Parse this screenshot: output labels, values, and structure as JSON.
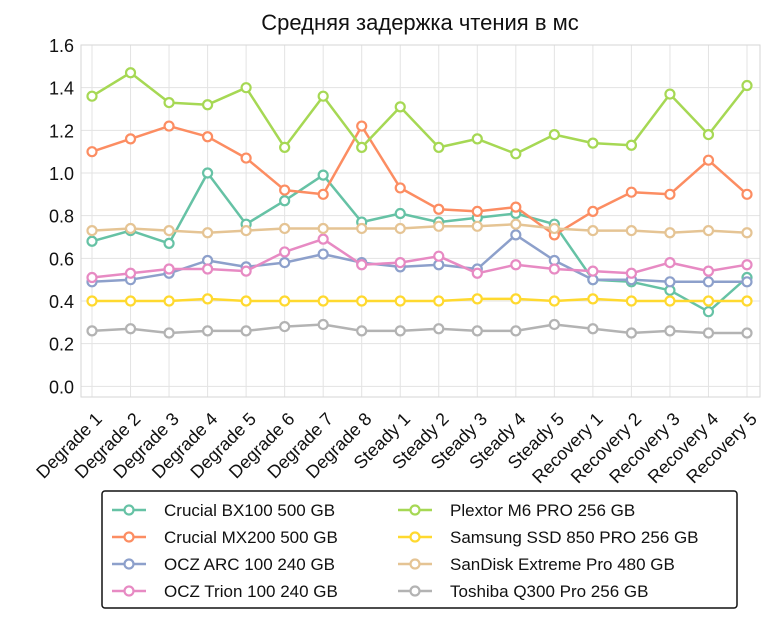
{
  "chart_data": {
    "type": "line",
    "title": "Средняя задержка чтения в мс",
    "xlabel": "",
    "ylabel": "",
    "ylim": [
      -0.05,
      1.6
    ],
    "yticks": [
      "0.0",
      "0.2",
      "0.4",
      "0.6",
      "0.8",
      "1.0",
      "1.2",
      "1.4",
      "1.6"
    ],
    "grid": true,
    "legend_position": "bottom-center",
    "categories": [
      "Degrade 1",
      "Degrade 2",
      "Degrade 3",
      "Degrade 4",
      "Degrade 5",
      "Degrade 6",
      "Degrade 7",
      "Degrade 8",
      "Steady 1",
      "Steady 2",
      "Steady 3",
      "Steady 4",
      "Steady 5",
      "Recovery 1",
      "Recovery 2",
      "Recovery 3",
      "Recovery 4",
      "Recovery 5"
    ],
    "series": [
      {
        "name": "Crucial BX100 500 GB",
        "color": "#66c2a5",
        "values": [
          0.68,
          0.73,
          0.67,
          1.0,
          0.76,
          0.87,
          0.99,
          0.77,
          0.81,
          0.77,
          0.79,
          0.81,
          0.76,
          0.5,
          0.49,
          0.45,
          0.35,
          0.51
        ]
      },
      {
        "name": "Crucial MX200 500 GB",
        "color": "#fc8d62",
        "values": [
          1.1,
          1.16,
          1.22,
          1.17,
          1.07,
          0.92,
          0.9,
          1.22,
          0.93,
          0.83,
          0.82,
          0.84,
          0.71,
          0.82,
          0.91,
          0.9,
          1.06,
          0.9
        ]
      },
      {
        "name": "OCZ ARC 100 240 GB",
        "color": "#8da0cb",
        "values": [
          0.49,
          0.5,
          0.53,
          0.59,
          0.56,
          0.58,
          0.62,
          0.58,
          0.56,
          0.57,
          0.55,
          0.71,
          0.59,
          0.5,
          0.5,
          0.49,
          0.49,
          0.49
        ]
      },
      {
        "name": "OCZ Trion 100 240 GB",
        "color": "#e78ac3",
        "values": [
          0.51,
          0.53,
          0.55,
          0.55,
          0.54,
          0.63,
          0.69,
          0.57,
          0.58,
          0.61,
          0.53,
          0.57,
          0.55,
          0.54,
          0.53,
          0.58,
          0.54,
          0.57
        ]
      },
      {
        "name": "Plextor M6 PRO 256 GB",
        "color": "#a6d854",
        "values": [
          1.36,
          1.47,
          1.33,
          1.32,
          1.4,
          1.12,
          1.36,
          1.12,
          1.31,
          1.12,
          1.16,
          1.09,
          1.18,
          1.14,
          1.13,
          1.37,
          1.18,
          1.41
        ]
      },
      {
        "name": "Samsung SSD 850 PRO 256 GB",
        "color": "#ffd92f",
        "values": [
          0.4,
          0.4,
          0.4,
          0.41,
          0.4,
          0.4,
          0.4,
          0.4,
          0.4,
          0.4,
          0.41,
          0.41,
          0.4,
          0.41,
          0.4,
          0.4,
          0.4,
          0.4
        ]
      },
      {
        "name": "SanDisk Extreme Pro 480 GB",
        "color": "#e5c494",
        "values": [
          0.73,
          0.74,
          0.73,
          0.72,
          0.73,
          0.74,
          0.74,
          0.74,
          0.74,
          0.75,
          0.75,
          0.76,
          0.74,
          0.73,
          0.73,
          0.72,
          0.73,
          0.72
        ]
      },
      {
        "name": "Toshiba Q300 Pro 256 GB",
        "color": "#b3b3b3",
        "values": [
          0.26,
          0.27,
          0.25,
          0.26,
          0.26,
          0.28,
          0.29,
          0.26,
          0.26,
          0.27,
          0.26,
          0.26,
          0.29,
          0.27,
          0.25,
          0.26,
          0.25,
          0.25
        ]
      }
    ]
  }
}
